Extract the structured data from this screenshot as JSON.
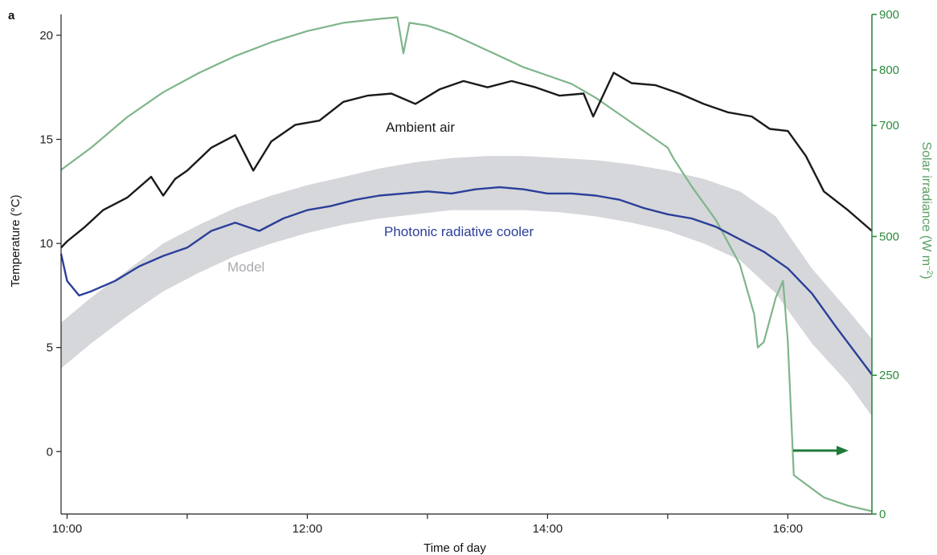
{
  "chart_data": {
    "type": "line",
    "panel_label": "a",
    "xlabel": "Time of day",
    "ylabel_left": "Temperature (°C)",
    "ylabel_right_text": "Solar irradiance (W m",
    "ylabel_right_sup": "–2",
    "ylabel_right_close": ")",
    "x_range_hours": [
      9.95,
      16.7
    ],
    "ylim_left": [
      -3,
      21
    ],
    "ylim_right": [
      0,
      900
    ],
    "x_ticks": [
      10,
      12,
      14,
      16
    ],
    "x_tick_labels": [
      "10:00",
      "12:00",
      "14:00",
      "16:00"
    ],
    "x_minor_ticks": [
      11,
      13,
      15
    ],
    "y_left_ticks": [
      0,
      5,
      10,
      15,
      20
    ],
    "y_left_tick_labels": [
      "0",
      "5",
      "10",
      "15",
      "20"
    ],
    "y_right_ticks": [
      0,
      250,
      500,
      700,
      800,
      900
    ],
    "y_right_tick_labels": [
      "0",
      "250",
      "500",
      "700",
      "800",
      "900"
    ],
    "grid": false,
    "colors": {
      "ambient": "#1a1a1a",
      "cooler": "#2b3f99",
      "model": "#d5d7da",
      "irradiance": "#7fb58a",
      "right_axis": "#2e8b3e",
      "arrow": "#1f7a3a"
    },
    "series": [
      {
        "name": "Ambient air",
        "axis": "left",
        "x": [
          9.95,
          10.0,
          10.15,
          10.3,
          10.5,
          10.7,
          10.8,
          10.9,
          11.0,
          11.2,
          11.4,
          11.55,
          11.7,
          11.9,
          12.1,
          12.3,
          12.5,
          12.7,
          12.9,
          13.1,
          13.3,
          13.5,
          13.7,
          13.9,
          14.1,
          14.3,
          14.38,
          14.55,
          14.7,
          14.9,
          15.1,
          15.3,
          15.5,
          15.7,
          15.85,
          16.0,
          16.15,
          16.3,
          16.5,
          16.7
        ],
        "y": [
          9.8,
          10.1,
          10.8,
          11.6,
          12.2,
          13.2,
          12.3,
          13.1,
          13.5,
          14.6,
          15.2,
          13.5,
          14.9,
          15.7,
          15.9,
          16.8,
          17.1,
          17.2,
          16.7,
          17.4,
          17.8,
          17.5,
          17.8,
          17.5,
          17.1,
          17.2,
          16.1,
          18.2,
          17.7,
          17.6,
          17.2,
          16.7,
          16.3,
          16.1,
          15.5,
          15.4,
          14.2,
          12.5,
          11.6,
          10.6
        ]
      },
      {
        "name": "Photonic radiative cooler",
        "axis": "left",
        "x": [
          9.95,
          10.0,
          10.1,
          10.2,
          10.4,
          10.6,
          10.8,
          11.0,
          11.2,
          11.4,
          11.6,
          11.8,
          12.0,
          12.2,
          12.4,
          12.6,
          12.8,
          13.0,
          13.2,
          13.4,
          13.6,
          13.8,
          14.0,
          14.2,
          14.4,
          14.6,
          14.8,
          15.0,
          15.2,
          15.4,
          15.6,
          15.8,
          16.0,
          16.2,
          16.4,
          16.7
        ],
        "y": [
          9.5,
          8.2,
          7.5,
          7.7,
          8.2,
          8.9,
          9.4,
          9.8,
          10.6,
          11.0,
          10.6,
          11.2,
          11.6,
          11.8,
          12.1,
          12.3,
          12.4,
          12.5,
          12.4,
          12.6,
          12.7,
          12.6,
          12.4,
          12.4,
          12.3,
          12.1,
          11.7,
          11.4,
          11.2,
          10.8,
          10.2,
          9.6,
          8.8,
          7.6,
          6.0,
          3.7
        ]
      },
      {
        "name": "Solar irradiance",
        "axis": "right",
        "x": [
          9.95,
          10.2,
          10.5,
          10.8,
          11.1,
          11.4,
          11.7,
          12.0,
          12.3,
          12.6,
          12.75,
          12.8,
          12.85,
          13.0,
          13.2,
          13.4,
          13.6,
          13.8,
          14.0,
          14.2,
          14.4,
          14.6,
          14.8,
          15.0,
          15.05,
          15.2,
          15.4,
          15.6,
          15.72,
          15.75,
          15.8,
          15.9,
          15.96,
          16.0,
          16.05,
          16.3,
          16.5,
          16.7
        ],
        "y": [
          620,
          660,
          715,
          760,
          795,
          825,
          850,
          870,
          885,
          892,
          895,
          830,
          885,
          880,
          865,
          845,
          825,
          805,
          790,
          775,
          750,
          720,
          690,
          660,
          640,
          590,
          530,
          450,
          360,
          300,
          310,
          390,
          420,
          310,
          70,
          30,
          15,
          5
        ]
      }
    ],
    "model_band": {
      "name": "Model",
      "axis": "left",
      "x": [
        9.95,
        10.2,
        10.5,
        10.8,
        11.1,
        11.4,
        11.7,
        12.0,
        12.3,
        12.6,
        12.9,
        13.2,
        13.5,
        13.8,
        14.1,
        14.4,
        14.7,
        15.0,
        15.3,
        15.6,
        15.9,
        16.2,
        16.5,
        16.7
      ],
      "upper": [
        6.2,
        7.4,
        8.7,
        10.0,
        10.9,
        11.7,
        12.3,
        12.8,
        13.2,
        13.6,
        13.9,
        14.1,
        14.2,
        14.2,
        14.1,
        14.0,
        13.8,
        13.5,
        13.1,
        12.5,
        11.3,
        8.8,
        6.8,
        5.4
      ],
      "lower": [
        4.0,
        5.2,
        6.5,
        7.7,
        8.6,
        9.4,
        10.0,
        10.5,
        10.9,
        11.2,
        11.4,
        11.6,
        11.6,
        11.6,
        11.5,
        11.3,
        11.0,
        10.6,
        10.0,
        9.2,
        7.6,
        5.2,
        3.3,
        1.7
      ]
    },
    "annotations": [
      {
        "text": "Ambient air",
        "color": "#1a1a1a"
      },
      {
        "text": "Photonic radiative cooler",
        "color": "#2b3f99"
      },
      {
        "text": "Model",
        "color": "#a8aaad"
      }
    ]
  }
}
